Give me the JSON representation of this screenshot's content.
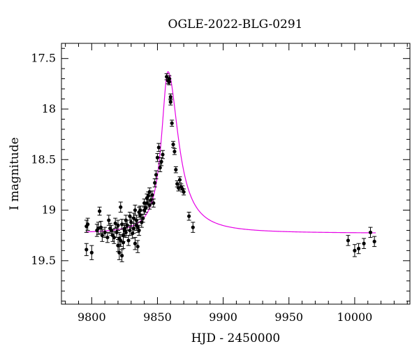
{
  "chart_data": {
    "type": "scatter",
    "title": "OGLE-2022-BLG-0291",
    "xlabel": "HJD - 2450000",
    "ylabel": "I magnitude",
    "xlim": [
      9777,
      10042
    ],
    "ylim": [
      19.93,
      17.35
    ],
    "y_inverted": true,
    "xticks": [
      9800,
      9850,
      9900,
      9950,
      10000
    ],
    "yticks": [
      17.5,
      18,
      18.5,
      19,
      19.5
    ],
    "x_minor_step": 10,
    "y_minor_step": 0.1,
    "grid": false,
    "legend": "none",
    "colors": {
      "data": "#000000",
      "model": "#e600e6",
      "axes": "#000000"
    },
    "series": [
      {
        "kind": "data",
        "x": [
          9796,
          9796,
          9797,
          9800,
          9804,
          9805,
          9806,
          9807,
          9808,
          9810,
          9812,
          9813,
          9814,
          9815,
          9816,
          9817,
          9818,
          9819,
          9820,
          9820,
          9821,
          9821,
          9822,
          9822,
          9823,
          9823,
          9824,
          9824,
          9825,
          9825,
          9826,
          9826,
          9827,
          9828,
          9829,
          9829,
          9830,
          9831,
          9832,
          9832,
          9833,
          9833,
          9834,
          9834,
          9835,
          9835,
          9836,
          9836,
          9837,
          9837,
          9838,
          9839,
          9840,
          9840,
          9841,
          9842,
          9842,
          9843,
          9844,
          9844,
          9845,
          9846,
          9847,
          9848,
          9849,
          9850,
          9851,
          9852,
          9853,
          9854,
          9857,
          9858,
          9859,
          9859,
          9860,
          9860,
          9861,
          9862,
          9863,
          9864,
          9865,
          9866,
          9867,
          9868,
          9869,
          9870,
          9874,
          9877,
          9995,
          10000,
          10003,
          10007,
          10012,
          10015
        ],
        "y": [
          19.39,
          19.16,
          19.14,
          19.42,
          19.2,
          19.18,
          19.01,
          19.17,
          19.25,
          19.22,
          19.27,
          19.1,
          19.18,
          19.2,
          19.25,
          19.27,
          19.13,
          19.22,
          19.15,
          19.35,
          19.28,
          19.42,
          18.97,
          19.3,
          19.45,
          19.14,
          19.25,
          19.32,
          19.2,
          19.18,
          19.22,
          19.1,
          19.15,
          19.3,
          19.06,
          19.2,
          19.12,
          19.23,
          19.18,
          19.08,
          19.33,
          19.0,
          19.1,
          19.15,
          19.36,
          19.17,
          19.2,
          19.02,
          19.0,
          19.05,
          19.12,
          19.08,
          18.93,
          19.0,
          18.98,
          18.88,
          18.93,
          18.86,
          18.82,
          18.95,
          18.9,
          18.85,
          18.93,
          18.73,
          18.65,
          18.48,
          18.38,
          18.58,
          18.52,
          18.45,
          17.68,
          17.72,
          17.7,
          17.73,
          17.88,
          17.93,
          18.14,
          18.35,
          18.42,
          18.6,
          18.74,
          18.78,
          18.7,
          18.77,
          18.79,
          18.82,
          19.06,
          19.17,
          19.3,
          19.4,
          19.38,
          19.33,
          19.22,
          19.31
        ],
        "err": [
          0.06,
          0.06,
          0.06,
          0.07,
          0.06,
          0.06,
          0.04,
          0.06,
          0.06,
          0.05,
          0.05,
          0.05,
          0.05,
          0.05,
          0.06,
          0.06,
          0.05,
          0.05,
          0.05,
          0.06,
          0.06,
          0.07,
          0.05,
          0.06,
          0.06,
          0.05,
          0.06,
          0.06,
          0.05,
          0.05,
          0.05,
          0.05,
          0.05,
          0.05,
          0.04,
          0.05,
          0.05,
          0.05,
          0.05,
          0.05,
          0.06,
          0.05,
          0.05,
          0.05,
          0.06,
          0.05,
          0.05,
          0.05,
          0.04,
          0.04,
          0.05,
          0.04,
          0.04,
          0.04,
          0.04,
          0.04,
          0.04,
          0.04,
          0.04,
          0.04,
          0.04,
          0.04,
          0.04,
          0.04,
          0.04,
          0.04,
          0.04,
          0.04,
          0.04,
          0.04,
          0.03,
          0.03,
          0.03,
          0.03,
          0.03,
          0.03,
          0.03,
          0.03,
          0.03,
          0.03,
          0.03,
          0.03,
          0.03,
          0.03,
          0.03,
          0.03,
          0.04,
          0.05,
          0.05,
          0.06,
          0.05,
          0.05,
          0.05,
          0.05
        ]
      },
      {
        "kind": "model",
        "t0": 9858,
        "baseline": 19.23,
        "peak": 17.63,
        "tau_rise": 6,
        "tau_fall": 9.5
      }
    ]
  }
}
